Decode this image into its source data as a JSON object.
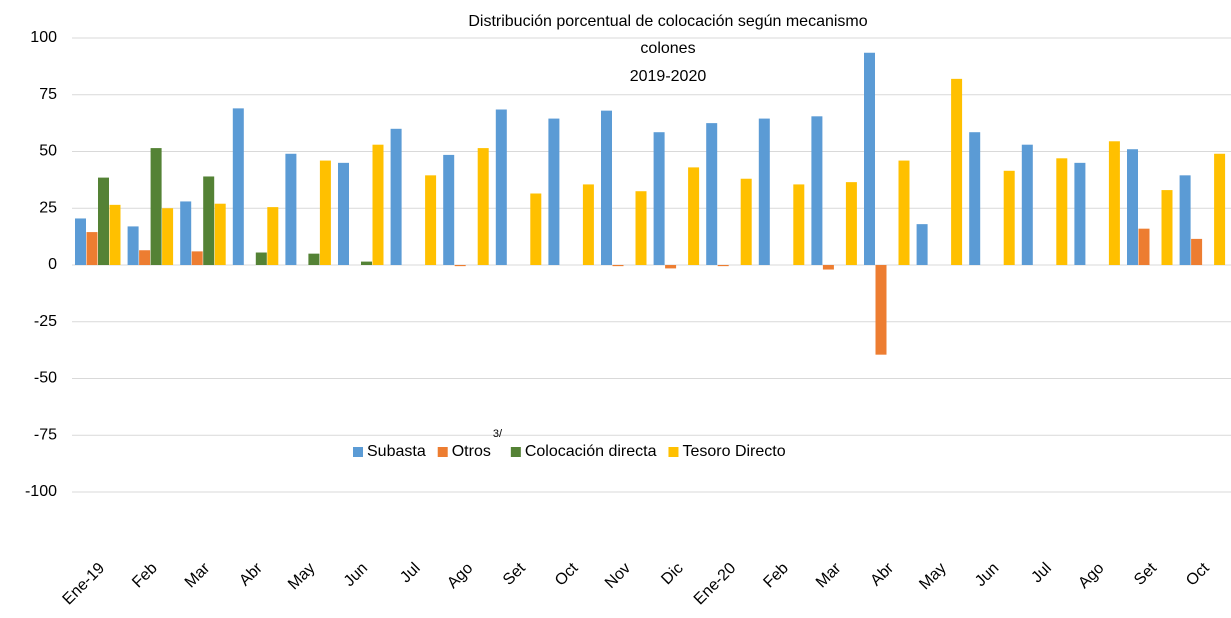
{
  "chart_data": {
    "type": "bar",
    "title": [
      "Distribución porcentual de colocación según mecanismo",
      "colones",
      "2019-2020"
    ],
    "annotation": "3/",
    "categories": [
      "Ene-19",
      "Feb",
      "Mar",
      "Abr",
      "May",
      "Jun",
      "Jul",
      "Ago",
      "Set",
      "Oct",
      "Nov",
      "Dic",
      "Ene-20",
      "Feb",
      "Mar",
      "Abr",
      "May",
      "Jun",
      "Jul",
      "Ago",
      "Set",
      "Oct"
    ],
    "series": [
      {
        "name": "Subasta",
        "color": "#5b9bd5",
        "values": [
          20.5,
          17,
          28,
          69,
          49,
          45,
          60,
          48.5,
          68.5,
          64.5,
          68,
          58.5,
          62.5,
          64.5,
          65.5,
          93.5,
          18,
          58.5,
          53,
          45,
          51,
          39.5
        ]
      },
      {
        "name": "Otros",
        "color": "#ed7d31",
        "values": [
          14.5,
          6.5,
          6,
          0,
          0,
          0,
          0,
          -0.5,
          0,
          0,
          -0.5,
          -1.5,
          -0.5,
          0,
          -2,
          -39.5,
          0,
          0,
          0,
          0,
          16,
          11.5
        ]
      },
      {
        "name": "Colocación directa",
        "color": "#548235",
        "values": [
          38.5,
          51.5,
          39,
          5.5,
          5,
          1.5,
          0,
          0,
          0,
          0,
          0,
          0,
          0,
          0,
          0,
          0,
          0,
          0,
          0,
          0,
          0,
          0
        ]
      },
      {
        "name": "Tesoro Directo",
        "color": "#ffc000",
        "values": [
          26.5,
          25,
          27,
          25.5,
          46,
          53,
          39.5,
          51.5,
          31.5,
          35.5,
          32.5,
          43,
          38,
          35.5,
          36.5,
          46,
          82,
          41.5,
          47,
          54.5,
          33,
          49
        ]
      }
    ],
    "ylim": [
      -100,
      100
    ],
    "yticks": [
      -100,
      -75,
      -50,
      -25,
      0,
      25,
      50,
      75,
      100
    ],
    "grid": true
  }
}
